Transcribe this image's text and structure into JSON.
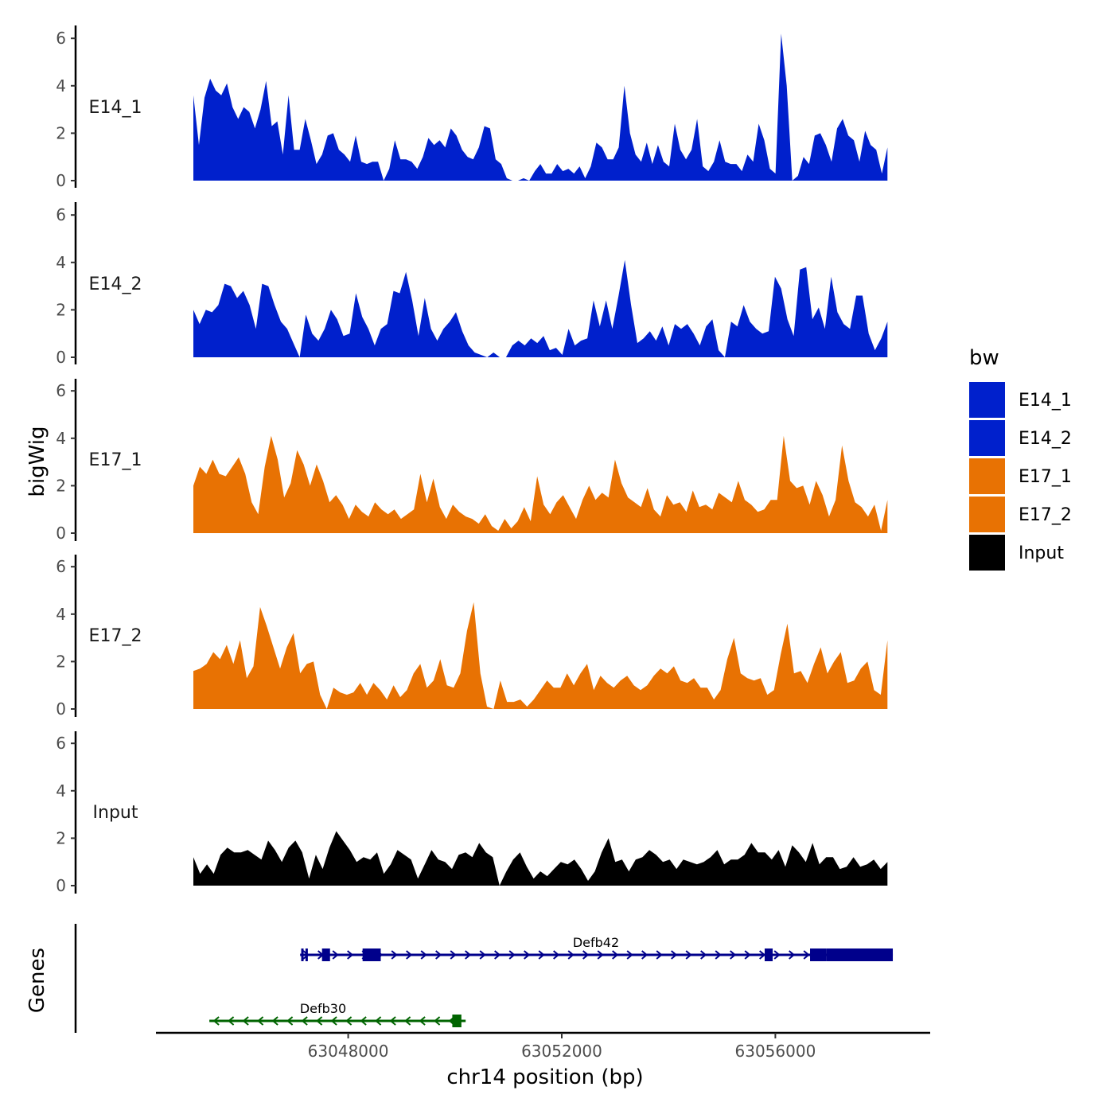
{
  "chart_data": {
    "type": "area",
    "title": "",
    "xlabel": "chr14 position (bp)",
    "ylabel": "bigWig",
    "genes_panel_label": "Genes",
    "xlim": [
      63044400,
      63058900
    ],
    "ylim": [
      0,
      6.3
    ],
    "x_ticks": [
      63048000,
      63052000,
      63056000
    ],
    "x_tick_labels": [
      "63048000",
      "63052000",
      "63056000"
    ],
    "y_ticks": [
      0,
      2,
      4,
      6
    ],
    "y_tick_labels": [
      "0",
      "2",
      "4",
      "6"
    ],
    "legend": {
      "title": "bw",
      "entries": [
        {
          "name": "E14_1",
          "color": "#0020CC"
        },
        {
          "name": "E14_2",
          "color": "#0020CC"
        },
        {
          "name": "E17_1",
          "color": "#E87203"
        },
        {
          "name": "E17_2",
          "color": "#E87203"
        },
        {
          "name": "Input",
          "color": "#000000"
        }
      ]
    },
    "x_start": 63045100,
    "x_step": 110,
    "series": [
      {
        "name": "E14_1",
        "color": "#0020CC",
        "values": [
          3.6,
          1.5,
          3.5,
          4.3,
          3.8,
          3.6,
          4.1,
          3.1,
          2.6,
          3.1,
          2.9,
          2.2,
          3.0,
          4.2,
          2.3,
          2.5,
          1.1,
          3.6,
          1.3,
          1.3,
          2.6,
          1.7,
          0.7,
          1.1,
          1.9,
          2.0,
          1.3,
          1.1,
          0.8,
          1.9,
          0.8,
          0.7,
          0.8,
          0.8,
          0.0,
          0.5,
          1.7,
          0.9,
          0.9,
          0.8,
          0.5,
          1.0,
          1.8,
          1.5,
          1.7,
          1.4,
          2.2,
          1.9,
          1.3,
          1.0,
          0.9,
          1.4,
          2.3,
          2.2,
          0.9,
          0.7,
          0.1,
          0.0,
          0.0,
          0.1,
          0.0,
          0.4,
          0.7,
          0.3,
          0.3,
          0.7,
          0.4,
          0.5,
          0.3,
          0.6,
          0.1,
          0.6,
          1.6,
          1.4,
          0.9,
          0.9,
          1.4,
          4.0,
          2.0,
          1.1,
          0.8,
          1.6,
          0.7,
          1.5,
          0.8,
          0.6,
          2.4,
          1.3,
          0.9,
          1.3,
          2.6,
          0.6,
          0.4,
          0.8,
          1.7,
          0.8,
          0.7,
          0.7,
          0.4,
          1.1,
          0.8,
          2.4,
          1.7,
          0.5,
          0.3,
          6.2,
          4.0,
          0.0,
          0.2,
          1.0,
          0.7,
          1.9,
          2.0,
          1.5,
          0.8,
          2.2,
          2.6,
          1.9,
          1.7,
          0.8,
          2.1,
          1.5,
          1.3,
          0.3,
          1.4
        ]
      },
      {
        "name": "E14_2",
        "color": "#0020CC",
        "values": [
          2.0,
          1.4,
          2.0,
          1.9,
          2.2,
          3.1,
          3.0,
          2.5,
          2.8,
          2.2,
          1.2,
          3.1,
          3.0,
          2.2,
          1.5,
          1.2,
          0.6,
          0.0,
          1.8,
          1.0,
          0.7,
          1.2,
          2.0,
          1.6,
          0.9,
          1.0,
          2.7,
          1.7,
          1.2,
          0.5,
          1.2,
          1.4,
          2.8,
          2.7,
          3.6,
          2.4,
          0.9,
          2.5,
          1.2,
          0.7,
          1.2,
          1.5,
          1.9,
          1.1,
          0.5,
          0.2,
          0.1,
          0.0,
          0.2,
          0.0,
          0.0,
          0.5,
          0.7,
          0.5,
          0.8,
          0.6,
          0.9,
          0.3,
          0.4,
          0.1,
          1.2,
          0.5,
          0.7,
          0.8,
          2.4,
          1.3,
          2.4,
          1.2,
          2.6,
          4.1,
          2.2,
          0.6,
          0.8,
          1.1,
          0.7,
          1.3,
          0.5,
          1.4,
          1.2,
          1.4,
          1.0,
          0.5,
          1.3,
          1.6,
          0.3,
          0.0,
          1.5,
          1.3,
          2.2,
          1.5,
          1.2,
          1.0,
          1.1,
          3.4,
          2.9,
          1.6,
          0.9,
          3.7,
          3.8,
          1.6,
          2.1,
          1.2,
          3.4,
          1.9,
          1.4,
          1.2,
          2.6,
          2.6,
          1.0,
          0.3,
          0.8,
          1.5
        ]
      },
      {
        "name": "E17_1",
        "color": "#E87203",
        "values": [
          2.0,
          2.8,
          2.5,
          3.1,
          2.5,
          2.4,
          2.8,
          3.2,
          2.5,
          1.3,
          0.8,
          2.8,
          4.1,
          3.1,
          1.5,
          2.1,
          3.5,
          2.9,
          2.0,
          2.9,
          2.2,
          1.3,
          1.6,
          1.2,
          0.6,
          1.2,
          0.9,
          0.7,
          1.3,
          1.0,
          0.8,
          1.0,
          0.6,
          0.8,
          1.0,
          2.5,
          1.3,
          2.3,
          1.1,
          0.6,
          1.2,
          0.9,
          0.7,
          0.6,
          0.4,
          0.8,
          0.3,
          0.1,
          0.6,
          0.2,
          0.5,
          1.1,
          0.5,
          2.4,
          1.2,
          0.8,
          1.3,
          1.6,
          1.1,
          0.6,
          1.4,
          2.0,
          1.4,
          1.7,
          1.5,
          3.1,
          2.1,
          1.5,
          1.3,
          1.1,
          1.9,
          1.0,
          0.7,
          1.6,
          1.2,
          1.3,
          0.9,
          1.8,
          1.1,
          1.2,
          1.0,
          1.7,
          1.5,
          1.3,
          2.2,
          1.4,
          1.2,
          0.9,
          1.0,
          1.4,
          1.4,
          4.1,
          2.2,
          1.9,
          2.0,
          1.2,
          2.2,
          1.6,
          0.7,
          1.4,
          3.7,
          2.2,
          1.3,
          1.1,
          0.7,
          1.2,
          0.1,
          1.4
        ]
      },
      {
        "name": "E17_2",
        "color": "#E87203",
        "values": [
          1.6,
          1.7,
          1.9,
          2.4,
          2.1,
          2.7,
          1.9,
          2.9,
          1.3,
          1.8,
          4.3,
          3.5,
          2.6,
          1.7,
          2.6,
          3.2,
          1.5,
          1.9,
          2.0,
          0.6,
          0.0,
          0.9,
          0.7,
          0.6,
          0.7,
          1.1,
          0.6,
          1.1,
          0.8,
          0.4,
          1.0,
          0.5,
          0.8,
          1.5,
          1.9,
          0.9,
          1.2,
          2.1,
          1.0,
          0.9,
          1.5,
          3.3,
          4.5,
          1.5,
          0.1,
          0.0,
          1.2,
          0.3,
          0.3,
          0.4,
          0.1,
          0.4,
          0.8,
          1.2,
          0.9,
          0.9,
          1.5,
          1.0,
          1.5,
          1.9,
          0.8,
          1.4,
          1.1,
          0.9,
          1.2,
          1.4,
          1.0,
          0.8,
          1.0,
          1.4,
          1.7,
          1.5,
          1.8,
          1.2,
          1.1,
          1.3,
          0.9,
          0.9,
          0.4,
          0.8,
          2.1,
          3.0,
          1.5,
          1.3,
          1.2,
          1.3,
          0.6,
          0.8,
          2.3,
          3.6,
          1.5,
          1.6,
          1.1,
          1.9,
          2.6,
          1.5,
          2.0,
          2.4,
          1.1,
          1.2,
          1.7,
          2.0,
          0.8,
          0.6,
          2.9
        ]
      },
      {
        "name": "Input",
        "color": "#000000",
        "values": [
          1.2,
          0.5,
          0.9,
          0.5,
          1.3,
          1.6,
          1.4,
          1.4,
          1.5,
          1.3,
          1.1,
          1.9,
          1.5,
          1.0,
          1.6,
          1.9,
          1.4,
          0.3,
          1.3,
          0.7,
          1.6,
          2.3,
          1.9,
          1.5,
          1.0,
          1.2,
          1.1,
          1.4,
          0.5,
          0.9,
          1.5,
          1.3,
          1.1,
          0.3,
          0.9,
          1.5,
          1.1,
          1.0,
          0.7,
          1.3,
          1.4,
          1.2,
          1.8,
          1.4,
          1.2,
          0.0,
          0.6,
          1.1,
          1.4,
          0.8,
          0.3,
          0.6,
          0.4,
          0.7,
          1.0,
          0.9,
          1.1,
          0.7,
          0.2,
          0.6,
          1.4,
          2.0,
          1.0,
          1.1,
          0.6,
          1.1,
          1.2,
          1.5,
          1.3,
          1.0,
          1.1,
          0.7,
          1.1,
          1.0,
          0.9,
          1.0,
          1.2,
          1.5,
          0.9,
          1.1,
          1.1,
          1.3,
          1.8,
          1.4,
          1.4,
          1.1,
          1.5,
          0.8,
          1.7,
          1.4,
          1.0,
          1.8,
          0.9,
          1.2,
          1.2,
          0.7,
          0.8,
          1.2,
          0.8,
          0.9,
          1.1,
          0.7,
          1.0
        ]
      }
    ],
    "genes": [
      {
        "name": "Defb42",
        "strand": "+",
        "color": "#00008B",
        "start": 63047100,
        "end": 63058200,
        "exons": [
          [
            63047120,
            63047150
          ],
          [
            63047200,
            63047230
          ],
          [
            63047510,
            63047660
          ],
          [
            63048270,
            63048610
          ],
          [
            63055800,
            63055950
          ],
          [
            63056650,
            63056950
          ],
          [
            63056950,
            63058200
          ]
        ]
      },
      {
        "name": "Defb30",
        "strand": "-",
        "color": "#006400",
        "start": 63045400,
        "end": 63050200,
        "exons": [
          [
            63049950,
            63050120
          ]
        ]
      }
    ]
  }
}
